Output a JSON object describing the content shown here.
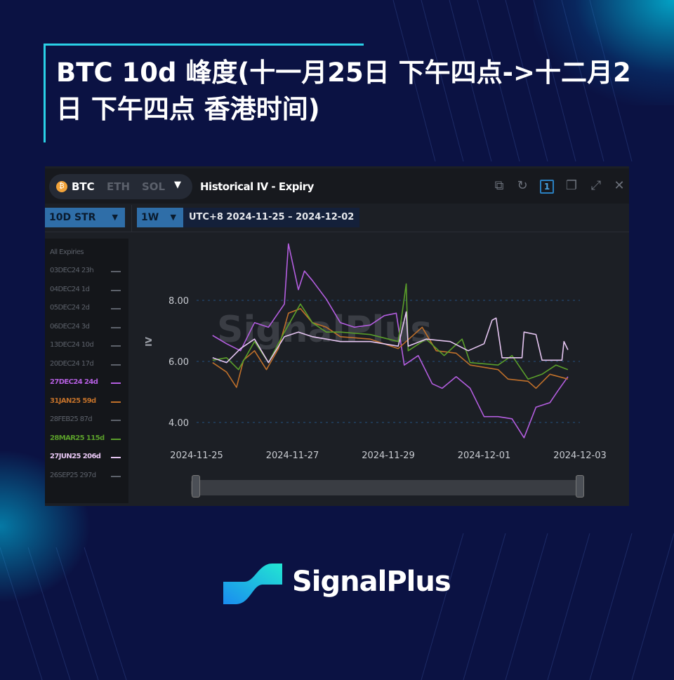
{
  "title": "BTC 10d 峰度(十一月25日 下午四点->十二月2日 下午四点 香港时间)",
  "panel": {
    "coins": [
      "BTC",
      "ETH",
      "SOL"
    ],
    "active_coin": "BTC",
    "coin_icon": "bitcoin-icon",
    "widget_title": "Historical IV - Expiry",
    "window_number": "1",
    "metric_select": "10D STR",
    "range_select": "1W",
    "date_range": "UTC+8 2024-11-25 – 2024-12-02"
  },
  "legend": {
    "header": "All Expiries",
    "items": [
      {
        "label": "03DEC24 23h",
        "color": "#5d626b",
        "active": false
      },
      {
        "label": "04DEC24 1d",
        "color": "#5d626b",
        "active": false
      },
      {
        "label": "05DEC24 2d",
        "color": "#5d626b",
        "active": false
      },
      {
        "label": "06DEC24 3d",
        "color": "#5d626b",
        "active": false
      },
      {
        "label": "13DEC24 10d",
        "color": "#5d626b",
        "active": false
      },
      {
        "label": "20DEC24 17d",
        "color": "#5d626b",
        "active": false
      },
      {
        "label": "27DEC24 24d",
        "color": "#b45ee0",
        "active": true
      },
      {
        "label": "31JAN25 59d",
        "color": "#c0702a",
        "active": true
      },
      {
        "label": "28FEB25 87d",
        "color": "#5d626b",
        "active": false
      },
      {
        "label": "28MAR25 115d",
        "color": "#5a9e2a",
        "active": true
      },
      {
        "label": "27JUN25 206d",
        "color": "#e6c6f2",
        "active": true
      },
      {
        "label": "26SEP25 297d",
        "color": "#5d626b",
        "active": false
      }
    ]
  },
  "chart_data": {
    "type": "line",
    "title": "Historical IV - Expiry",
    "xlabel": "",
    "ylabel": "IV",
    "x_ticks": [
      "2024-11-25",
      "2024-11-27",
      "2024-11-29",
      "2024-12-01",
      "2024-12-03"
    ],
    "y_ticks": [
      "4.00",
      "6.00",
      "8.00"
    ],
    "xlim": [
      "2024-11-25 00:00",
      "2024-12-03 00:00"
    ],
    "ylim": [
      3.3,
      10.0
    ],
    "grid": "horizontal dashed",
    "watermark": "SignalPlus",
    "series": [
      {
        "name": "27DEC24 24d",
        "color": "#b45ee0",
        "points": [
          [
            "2024-11-25 08:00",
            6.85
          ],
          [
            "2024-11-25 15:00",
            6.58
          ],
          [
            "2024-11-25 22:00",
            6.35
          ],
          [
            "2024-11-26 05:00",
            7.27
          ],
          [
            "2024-11-26 12:00",
            7.12
          ],
          [
            "2024-11-26 20:00",
            7.88
          ],
          [
            "2024-11-26 22:00",
            9.85
          ],
          [
            "2024-11-27 03:00",
            8.35
          ],
          [
            "2024-11-27 06:00",
            8.96
          ],
          [
            "2024-11-27 10:00",
            8.65
          ],
          [
            "2024-11-27 17:00",
            8.04
          ],
          [
            "2024-11-28 00:00",
            7.27
          ],
          [
            "2024-11-28 07:00",
            7.12
          ],
          [
            "2024-11-28 15:00",
            7.19
          ],
          [
            "2024-11-28 22:00",
            7.5
          ],
          [
            "2024-11-29 04:00",
            7.58
          ],
          [
            "2024-11-29 08:00",
            5.88
          ],
          [
            "2024-11-29 15:00",
            6.19
          ],
          [
            "2024-11-29 22:00",
            5.27
          ],
          [
            "2024-11-30 03:00",
            5.12
          ],
          [
            "2024-11-30 10:00",
            5.5
          ],
          [
            "2024-11-30 17:00",
            5.12
          ],
          [
            "2024-12-01 00:00",
            4.19
          ],
          [
            "2024-12-01 07:00",
            4.19
          ],
          [
            "2024-12-01 14:00",
            4.12
          ],
          [
            "2024-12-01 20:00",
            3.5
          ],
          [
            "2024-12-02 02:00",
            4.5
          ],
          [
            "2024-12-02 09:00",
            4.65
          ],
          [
            "2024-12-02 13:00",
            5.04
          ],
          [
            "2024-12-02 18:00",
            5.5
          ]
        ]
      },
      {
        "name": "31JAN25 59d",
        "color": "#c0702a",
        "points": [
          [
            "2024-11-25 08:00",
            5.96
          ],
          [
            "2024-11-25 15:00",
            5.65
          ],
          [
            "2024-11-25 20:00",
            5.15
          ],
          [
            "2024-11-25 23:30",
            6.04
          ],
          [
            "2024-11-26 05:00",
            6.35
          ],
          [
            "2024-11-26 11:00",
            5.73
          ],
          [
            "2024-11-26 17:00",
            6.42
          ],
          [
            "2024-11-26 22:00",
            7.58
          ],
          [
            "2024-11-27 04:00",
            7.73
          ],
          [
            "2024-11-27 10:00",
            7.27
          ],
          [
            "2024-11-27 17:00",
            7.12
          ],
          [
            "2024-11-28 00:00",
            6.81
          ],
          [
            "2024-11-28 15:00",
            6.73
          ],
          [
            "2024-11-29 05:00",
            6.42
          ],
          [
            "2024-11-29 17:00",
            7.12
          ],
          [
            "2024-11-30 00:00",
            6.35
          ],
          [
            "2024-11-30 10:00",
            6.27
          ],
          [
            "2024-11-30 17:00",
            5.88
          ],
          [
            "2024-12-01 07:00",
            5.73
          ],
          [
            "2024-12-01 12:00",
            5.42
          ],
          [
            "2024-12-01 22:00",
            5.35
          ],
          [
            "2024-12-02 02:00",
            5.12
          ],
          [
            "2024-12-02 09:00",
            5.58
          ],
          [
            "2024-12-02 18:00",
            5.42
          ]
        ]
      },
      {
        "name": "28MAR25 115d",
        "color": "#5a9e2a",
        "points": [
          [
            "2024-11-25 08:00",
            6.04
          ],
          [
            "2024-11-25 15:00",
            6.12
          ],
          [
            "2024-11-25 21:00",
            5.73
          ],
          [
            "2024-11-26 05:00",
            6.65
          ],
          [
            "2024-11-26 12:00",
            5.96
          ],
          [
            "2024-11-26 20:00",
            6.96
          ],
          [
            "2024-11-27 04:00",
            7.88
          ],
          [
            "2024-11-27 10:00",
            7.27
          ],
          [
            "2024-11-27 17:00",
            6.96
          ],
          [
            "2024-11-28 00:00",
            6.96
          ],
          [
            "2024-11-28 15:00",
            6.88
          ],
          [
            "2024-11-29 05:00",
            6.65
          ],
          [
            "2024-11-29 09:00",
            8.54
          ],
          [
            "2024-11-29 10:00",
            6.35
          ],
          [
            "2024-11-29 19:00",
            6.73
          ],
          [
            "2024-11-30 04:00",
            6.19
          ],
          [
            "2024-11-30 13:00",
            6.73
          ],
          [
            "2024-11-30 17:00",
            5.96
          ],
          [
            "2024-12-01 07:00",
            5.88
          ],
          [
            "2024-12-01 14:00",
            6.19
          ],
          [
            "2024-12-01 22:00",
            5.42
          ],
          [
            "2024-12-02 05:00",
            5.58
          ],
          [
            "2024-12-02 12:00",
            5.88
          ],
          [
            "2024-12-02 18:00",
            5.73
          ]
        ]
      },
      {
        "name": "27JUN25 206d",
        "color": "#e6c6f2",
        "points": [
          [
            "2024-11-25 08:00",
            6.12
          ],
          [
            "2024-11-25 15:00",
            5.96
          ],
          [
            "2024-11-25 22:00",
            6.42
          ],
          [
            "2024-11-26 05:00",
            6.73
          ],
          [
            "2024-11-26 12:00",
            5.96
          ],
          [
            "2024-11-26 20:00",
            6.81
          ],
          [
            "2024-11-27 03:00",
            6.96
          ],
          [
            "2024-11-27 10:00",
            6.81
          ],
          [
            "2024-11-27 17:00",
            6.73
          ],
          [
            "2024-11-28 00:00",
            6.65
          ],
          [
            "2024-11-28 15:00",
            6.65
          ],
          [
            "2024-11-29 05:00",
            6.5
          ],
          [
            "2024-11-29 09:00",
            7.62
          ],
          [
            "2024-11-29 10:00",
            6.5
          ],
          [
            "2024-11-29 19:00",
            6.73
          ],
          [
            "2024-11-30 07:00",
            6.65
          ],
          [
            "2024-11-30 16:00",
            6.35
          ],
          [
            "2024-12-01 00:00",
            6.58
          ],
          [
            "2024-12-01 04:00",
            7.35
          ],
          [
            "2024-12-01 06:00",
            7.42
          ],
          [
            "2024-12-01 09:00",
            6.12
          ],
          [
            "2024-12-01 19:00",
            6.12
          ],
          [
            "2024-12-01 20:00",
            6.96
          ],
          [
            "2024-12-02 02:00",
            6.88
          ],
          [
            "2024-12-02 05:00",
            6.04
          ],
          [
            "2024-12-02 15:00",
            6.04
          ],
          [
            "2024-12-02 16:00",
            6.65
          ],
          [
            "2024-12-02 18:00",
            6.38
          ]
        ]
      }
    ]
  },
  "brand": {
    "name": "SignalPlus",
    "logo_gradient": [
      "#1a8cf0",
      "#22e6d2"
    ]
  }
}
